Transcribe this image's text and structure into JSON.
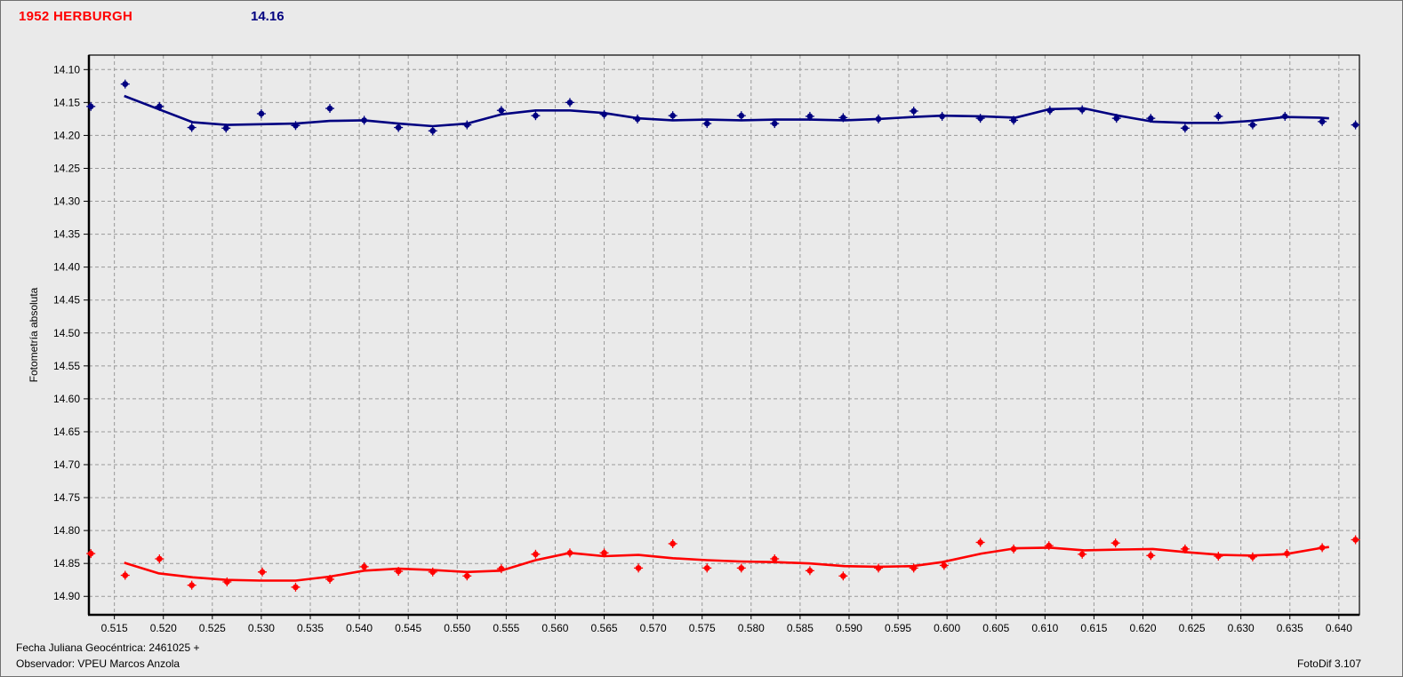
{
  "header": {
    "object_name": "1952 HERBURGH",
    "magnitude_label": "14.16"
  },
  "footer": {
    "julian_date": "Fecha Juliana Geocéntrica: 2461025 +",
    "observer": "Observador: VPEU Marcos Anzola",
    "app_version": "FotoDif 3.107"
  },
  "colors": {
    "background": "#EAEAEA",
    "window_border": "#707070",
    "grid": "#999999",
    "axis": "#000000",
    "title_red": "#FF0000",
    "title_blue": "#000080",
    "series_blue": "#000080",
    "series_red": "#FF0000"
  },
  "chart_data": {
    "type": "scatter",
    "title": "",
    "xlabel": "",
    "ylabel": "Fotometría absoluta",
    "grid": true,
    "legend": "none",
    "xlim": [
      0.5124,
      0.6421
    ],
    "ylim": [
      14.078,
      14.928
    ],
    "y_axis_inverted_note": "magnitude axis increases downward",
    "x_ticks": [
      "0.515",
      "0.520",
      "0.525",
      "0.530",
      "0.535",
      "0.540",
      "0.545",
      "0.550",
      "0.555",
      "0.560",
      "0.565",
      "0.570",
      "0.575",
      "0.580",
      "0.585",
      "0.590",
      "0.595",
      "0.600",
      "0.605",
      "0.610",
      "0.615",
      "0.620",
      "0.625",
      "0.630",
      "0.635",
      "0.640"
    ],
    "y_ticks": [
      "14.10",
      "14.15",
      "14.20",
      "14.25",
      "14.30",
      "14.35",
      "14.40",
      "14.45",
      "14.50",
      "14.55",
      "14.60",
      "14.65",
      "14.70",
      "14.75",
      "14.80",
      "14.85",
      "14.90"
    ],
    "series": [
      {
        "name": "blue",
        "color": "#000080",
        "points": [
          [
            0.5126,
            14.156
          ],
          [
            0.5161,
            14.122
          ],
          [
            0.5196,
            14.156
          ],
          [
            0.5229,
            14.188
          ],
          [
            0.5264,
            14.189
          ],
          [
            0.53,
            14.167
          ],
          [
            0.5335,
            14.185
          ],
          [
            0.537,
            14.159
          ],
          [
            0.5405,
            14.177
          ],
          [
            0.544,
            14.188
          ],
          [
            0.5475,
            14.193
          ],
          [
            0.551,
            14.184
          ],
          [
            0.5545,
            14.162
          ],
          [
            0.558,
            14.17
          ],
          [
            0.5615,
            14.15
          ],
          [
            0.565,
            14.168
          ],
          [
            0.5684,
            14.175
          ],
          [
            0.572,
            14.17
          ],
          [
            0.5755,
            14.182
          ],
          [
            0.579,
            14.17
          ],
          [
            0.5824,
            14.182
          ],
          [
            0.586,
            14.171
          ],
          [
            0.5894,
            14.173
          ],
          [
            0.593,
            14.175
          ],
          [
            0.5966,
            14.163
          ],
          [
            0.5995,
            14.171
          ],
          [
            0.6034,
            14.174
          ],
          [
            0.6068,
            14.177
          ],
          [
            0.6105,
            14.162
          ],
          [
            0.6138,
            14.161
          ],
          [
            0.6173,
            14.174
          ],
          [
            0.6208,
            14.174
          ],
          [
            0.6243,
            14.189
          ],
          [
            0.6277,
            14.171
          ],
          [
            0.6312,
            14.184
          ],
          [
            0.6345,
            14.171
          ],
          [
            0.6383,
            14.179
          ],
          [
            0.6417,
            14.184
          ]
        ],
        "fit_line": [
          [
            0.516,
            14.14
          ],
          [
            0.5195,
            14.16
          ],
          [
            0.523,
            14.18
          ],
          [
            0.5265,
            14.184
          ],
          [
            0.53,
            14.183
          ],
          [
            0.5335,
            14.182
          ],
          [
            0.537,
            14.178
          ],
          [
            0.5405,
            14.177
          ],
          [
            0.544,
            14.182
          ],
          [
            0.5475,
            14.186
          ],
          [
            0.551,
            14.182
          ],
          [
            0.5545,
            14.168
          ],
          [
            0.558,
            14.162
          ],
          [
            0.5615,
            14.162
          ],
          [
            0.565,
            14.166
          ],
          [
            0.5685,
            14.174
          ],
          [
            0.572,
            14.177
          ],
          [
            0.5755,
            14.176
          ],
          [
            0.579,
            14.177
          ],
          [
            0.5825,
            14.176
          ],
          [
            0.586,
            14.176
          ],
          [
            0.5895,
            14.177
          ],
          [
            0.593,
            14.175
          ],
          [
            0.5965,
            14.172
          ],
          [
            0.5995,
            14.17
          ],
          [
            0.6035,
            14.171
          ],
          [
            0.607,
            14.173
          ],
          [
            0.6105,
            14.16
          ],
          [
            0.614,
            14.159
          ],
          [
            0.6175,
            14.17
          ],
          [
            0.621,
            14.179
          ],
          [
            0.6245,
            14.181
          ],
          [
            0.628,
            14.181
          ],
          [
            0.631,
            14.178
          ],
          [
            0.6345,
            14.172
          ],
          [
            0.638,
            14.173
          ],
          [
            0.639,
            14.174
          ]
        ]
      },
      {
        "name": "red",
        "color": "#FF0000",
        "points": [
          [
            0.5126,
            14.835
          ],
          [
            0.5161,
            14.868
          ],
          [
            0.5196,
            14.843
          ],
          [
            0.5229,
            14.883
          ],
          [
            0.5265,
            14.878
          ],
          [
            0.5301,
            14.863
          ],
          [
            0.5335,
            14.886
          ],
          [
            0.537,
            14.874
          ],
          [
            0.5405,
            14.855
          ],
          [
            0.544,
            14.862
          ],
          [
            0.5475,
            14.863
          ],
          [
            0.551,
            14.869
          ],
          [
            0.5545,
            14.858
          ],
          [
            0.558,
            14.836
          ],
          [
            0.5615,
            14.834
          ],
          [
            0.565,
            14.834
          ],
          [
            0.5685,
            14.857
          ],
          [
            0.572,
            14.82
          ],
          [
            0.5755,
            14.857
          ],
          [
            0.579,
            14.857
          ],
          [
            0.5824,
            14.843
          ],
          [
            0.586,
            14.861
          ],
          [
            0.5894,
            14.869
          ],
          [
            0.593,
            14.857
          ],
          [
            0.5966,
            14.857
          ],
          [
            0.5997,
            14.853
          ],
          [
            0.6034,
            14.818
          ],
          [
            0.6068,
            14.828
          ],
          [
            0.6104,
            14.823
          ],
          [
            0.6138,
            14.836
          ],
          [
            0.6172,
            14.819
          ],
          [
            0.6208,
            14.838
          ],
          [
            0.6243,
            14.828
          ],
          [
            0.6277,
            14.839
          ],
          [
            0.6312,
            14.84
          ],
          [
            0.6347,
            14.835
          ],
          [
            0.6383,
            14.826
          ],
          [
            0.6417,
            14.814
          ]
        ],
        "fit_line": [
          [
            0.516,
            14.849
          ],
          [
            0.5195,
            14.865
          ],
          [
            0.523,
            14.871
          ],
          [
            0.5265,
            14.875
          ],
          [
            0.53,
            14.876
          ],
          [
            0.5335,
            14.876
          ],
          [
            0.537,
            14.87
          ],
          [
            0.5405,
            14.861
          ],
          [
            0.544,
            14.858
          ],
          [
            0.5475,
            14.86
          ],
          [
            0.551,
            14.863
          ],
          [
            0.5545,
            14.861
          ],
          [
            0.558,
            14.845
          ],
          [
            0.5615,
            14.834
          ],
          [
            0.565,
            14.839
          ],
          [
            0.5685,
            14.837
          ],
          [
            0.572,
            14.842
          ],
          [
            0.5755,
            14.845
          ],
          [
            0.579,
            14.847
          ],
          [
            0.5825,
            14.848
          ],
          [
            0.586,
            14.85
          ],
          [
            0.5895,
            14.854
          ],
          [
            0.593,
            14.855
          ],
          [
            0.5965,
            14.854
          ],
          [
            0.5995,
            14.848
          ],
          [
            0.6035,
            14.835
          ],
          [
            0.607,
            14.827
          ],
          [
            0.6105,
            14.826
          ],
          [
            0.614,
            14.83
          ],
          [
            0.6175,
            14.829
          ],
          [
            0.621,
            14.828
          ],
          [
            0.6245,
            14.833
          ],
          [
            0.628,
            14.837
          ],
          [
            0.631,
            14.838
          ],
          [
            0.6345,
            14.836
          ],
          [
            0.638,
            14.827
          ],
          [
            0.639,
            14.825
          ]
        ]
      }
    ]
  }
}
